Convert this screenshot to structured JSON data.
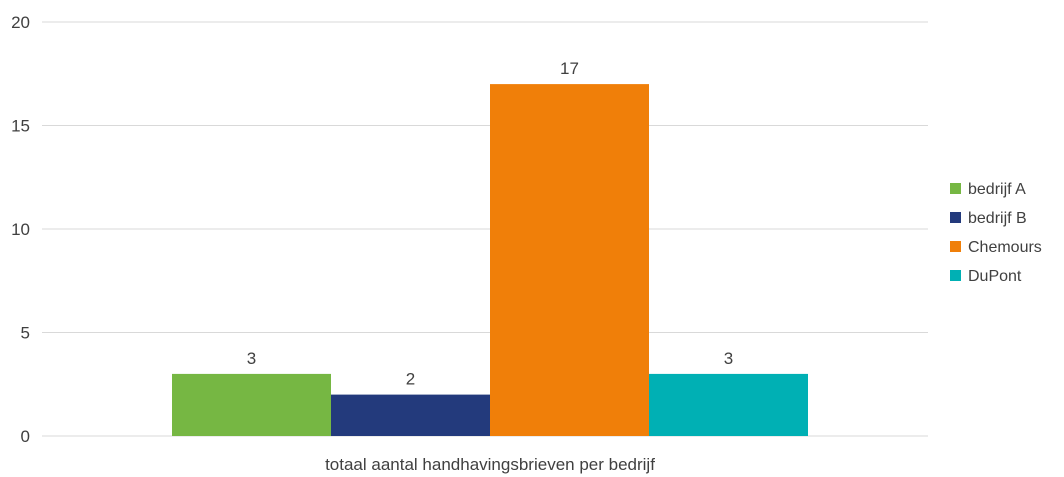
{
  "chart_data": {
    "type": "bar",
    "categories": [
      "totaal aantal handhavingsbrieven per bedrijf"
    ],
    "series": [
      {
        "name": "bedrijf A",
        "values": [
          3
        ],
        "color": "#76b743"
      },
      {
        "name": "bedrijf B",
        "values": [
          2
        ],
        "color": "#233a7c"
      },
      {
        "name": "Chemours",
        "values": [
          17
        ],
        "color": "#f07f09"
      },
      {
        "name": "DuPont",
        "values": [
          3
        ],
        "color": "#00b0b4"
      }
    ],
    "title": "",
    "xlabel": "",
    "ylabel": "",
    "ylim": [
      0,
      20
    ],
    "yticks": [
      0,
      5,
      10,
      15,
      20
    ],
    "grid": true,
    "legend_position": "right",
    "data_labels": true,
    "gridline_color": "#d9d9d9"
  }
}
